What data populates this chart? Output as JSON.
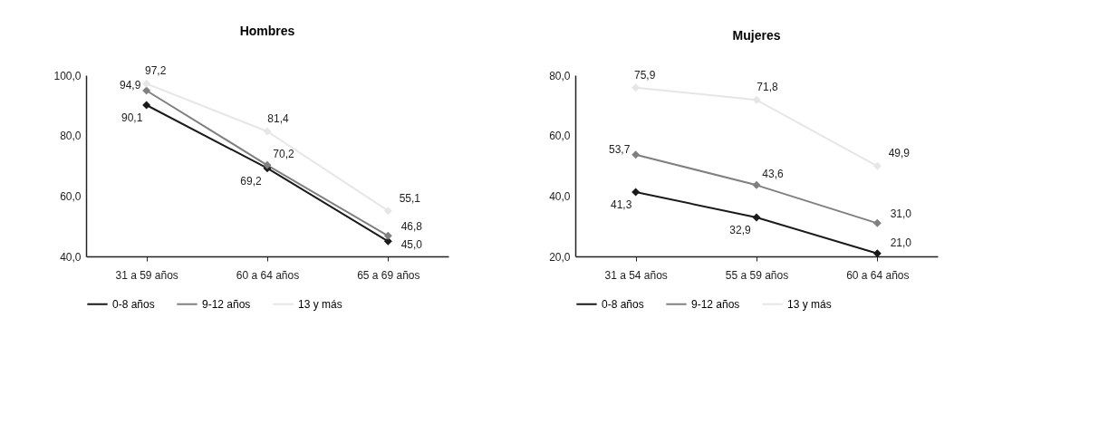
{
  "chart_data": [
    {
      "type": "line",
      "title": "Hombres",
      "categories": [
        "31 a 59 años",
        "60 a 64 años",
        "65 a 69 años"
      ],
      "marker": "diamond",
      "legend": "bottom",
      "grid": false,
      "ylim": [
        40,
        100
      ],
      "yticks": [
        {
          "value": 40,
          "label": "40,0"
        },
        {
          "value": 60,
          "label": "60,0"
        },
        {
          "value": 80,
          "label": "80,0"
        },
        {
          "value": 100,
          "label": "100,0"
        }
      ],
      "series": [
        {
          "name": "0-8 años",
          "color": "#1a1a1a",
          "values": [
            90.1,
            69.2,
            45.0
          ],
          "value_labels": [
            "90,1",
            "69,2",
            "45,0"
          ]
        },
        {
          "name": "9-12 años",
          "color": "#808080",
          "values": [
            94.9,
            70.2,
            46.8
          ],
          "value_labels": [
            "94,9",
            "70,2",
            "46,8"
          ]
        },
        {
          "name": "13 y más",
          "color": "#e6e6e6",
          "values": [
            97.2,
            81.4,
            55.1
          ],
          "value_labels": [
            "97,2",
            "81,4",
            "55,1"
          ]
        }
      ]
    },
    {
      "type": "line",
      "title": "Mujeres",
      "categories": [
        "31 a 54 años",
        "55 a 59 años",
        "60 a 64 años"
      ],
      "marker": "diamond",
      "legend": "bottom",
      "grid": false,
      "ylim": [
        20,
        80
      ],
      "yticks": [
        {
          "value": 20,
          "label": "20,0"
        },
        {
          "value": 40,
          "label": "40,0"
        },
        {
          "value": 60,
          "label": "60,0"
        },
        {
          "value": 80,
          "label": "80,0"
        }
      ],
      "series": [
        {
          "name": "0-8 años",
          "color": "#1a1a1a",
          "values": [
            41.3,
            32.9,
            21.0
          ],
          "value_labels": [
            "41,3",
            "32,9",
            "21,0"
          ]
        },
        {
          "name": "9-12 años",
          "color": "#808080",
          "values": [
            53.7,
            43.6,
            31.0
          ],
          "value_labels": [
            "53,7",
            "43,6",
            "31,0"
          ]
        },
        {
          "name": "13 y más",
          "color": "#e6e6e6",
          "values": [
            75.9,
            71.8,
            49.9
          ],
          "value_labels": [
            "75,9",
            "71,8",
            "49,9"
          ]
        }
      ]
    }
  ]
}
